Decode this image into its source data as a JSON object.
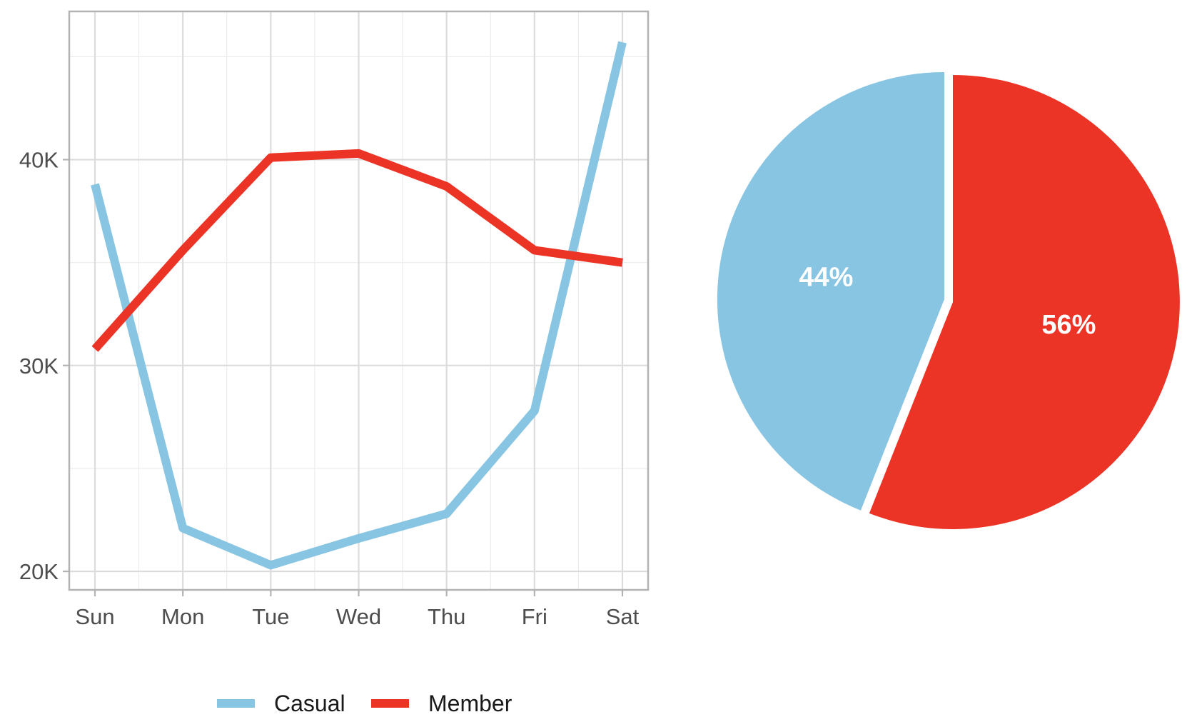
{
  "chart_data": [
    {
      "type": "line",
      "title": "",
      "xlabel": "",
      "ylabel": "",
      "categories": [
        "Sun",
        "Mon",
        "Tue",
        "Wed",
        "Thu",
        "Fri",
        "Sat"
      ],
      "series": [
        {
          "name": "Casual",
          "color": "#87C5E2",
          "values": [
            38800,
            22100,
            20300,
            21600,
            22800,
            27800,
            45700
          ]
        },
        {
          "name": "Member",
          "color": "#EC3426",
          "values": [
            30800,
            35600,
            40100,
            40300,
            38700,
            35600,
            35000
          ]
        }
      ],
      "yticks": [
        20000,
        30000,
        40000
      ],
      "ytick_labels": [
        "20K",
        "30K",
        "40K"
      ],
      "ylim": [
        19100,
        47200
      ],
      "grid": true,
      "legend_position": "bottom"
    },
    {
      "type": "pie",
      "title": "",
      "slices": [
        {
          "name": "Casual",
          "value": 44,
          "label": "44%",
          "color": "#87C5E2"
        },
        {
          "name": "Member",
          "value": 56,
          "label": "56%",
          "color": "#EC3426"
        }
      ],
      "explode": "Member",
      "legend_position": "none"
    }
  ]
}
